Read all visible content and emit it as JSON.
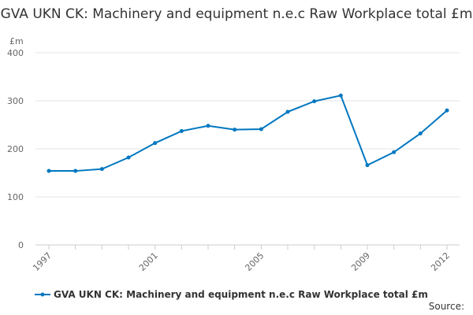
{
  "chart_data": {
    "type": "line",
    "title": "GVA UKN CK: Machinery and equipment n.e.c Raw Workplace total £m",
    "ylabel": "£m",
    "xlabel": "",
    "x": [
      1997,
      1998,
      1999,
      2000,
      2001,
      2002,
      2003,
      2004,
      2005,
      2006,
      2007,
      2008,
      2009,
      2010,
      2011,
      2012
    ],
    "x_tick_labels": [
      "1997",
      "2001",
      "2005",
      "2009",
      "2012"
    ],
    "y_ticks": [
      0,
      100,
      200,
      300,
      400
    ],
    "ylim": [
      0,
      400
    ],
    "grid": true,
    "legend": "bottom",
    "series": [
      {
        "name": "GVA UKN CK: Machinery and equipment n.e.c Raw Workplace total £m",
        "color": "#0077c0",
        "values": [
          154,
          154,
          158,
          182,
          212,
          237,
          248,
          240,
          241,
          277,
          299,
          311,
          166,
          193,
          232,
          280
        ]
      }
    ]
  },
  "source_label": "Source:"
}
